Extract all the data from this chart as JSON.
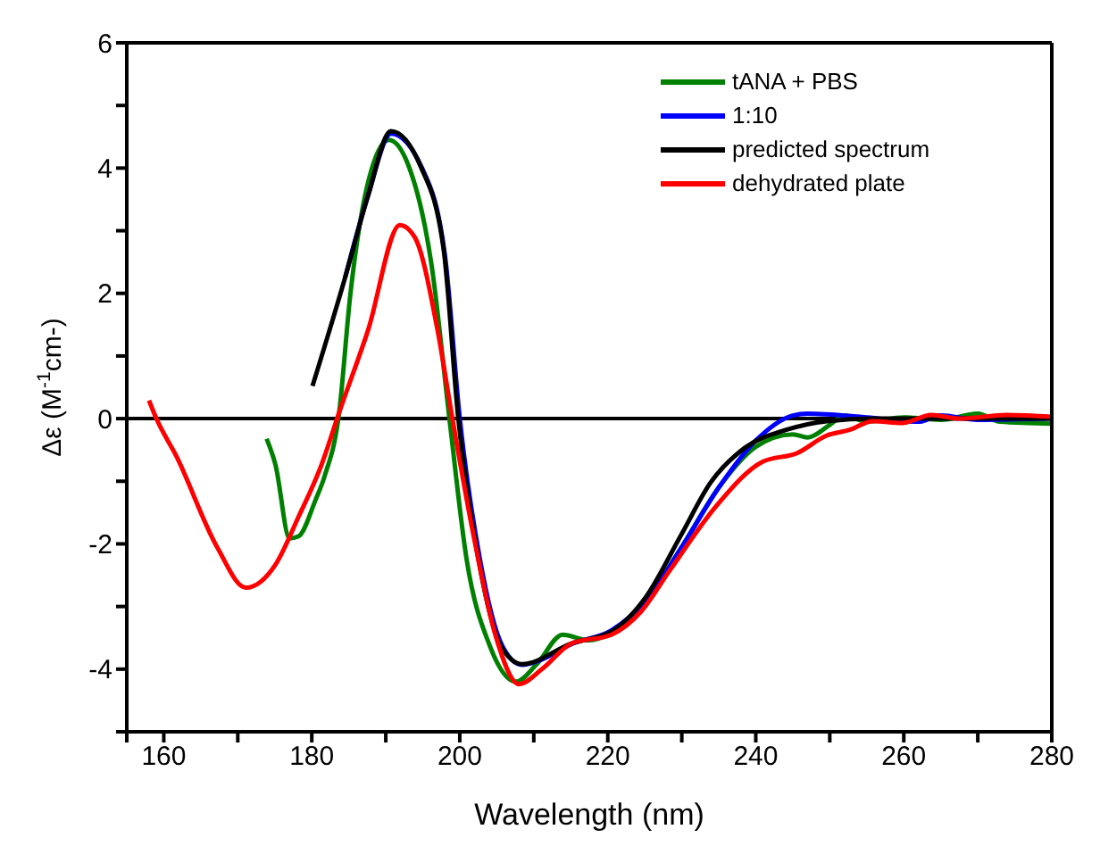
{
  "chart_data": {
    "type": "line",
    "xlabel": "Wavelength (nm)",
    "ylabel": "Δε (M$^{-1}$cm-)",
    "xlim": [
      155,
      280
    ],
    "xticks": [
      {
        "value": 155,
        "label": null
      },
      160,
      {
        "value": 170,
        "label": null
      },
      180,
      {
        "value": 190,
        "label": null
      },
      200,
      {
        "value": 210,
        "label": null
      },
      220,
      {
        "value": 230,
        "label": null
      },
      240,
      {
        "value": 250,
        "label": null
      },
      260,
      {
        "value": 270,
        "label": null
      },
      280
    ],
    "ylim": [
      -5,
      6
    ],
    "yticks": [
      {
        "value": -5,
        "label": null
      },
      -4,
      {
        "value": -3,
        "label": null
      },
      -2,
      {
        "value": -1,
        "label": null
      },
      0,
      {
        "value": 1,
        "label": null
      },
      2,
      {
        "value": 3,
        "label": null
      },
      4,
      {
        "value": 5,
        "label": null
      },
      6
    ],
    "legend": "top right",
    "line_style": "solid",
    "ref_lines": [
      {
        "axis": "y",
        "value": 0,
        "label": null,
        "color": "#000000"
      }
    ],
    "series": [
      {
        "name": "tANA + PBS",
        "color": "#008000",
        "x": [
          173.9,
          175.1,
          177,
          178.2,
          180.5,
          181.7,
          183.7,
          185.2,
          187.2,
          190.4,
          193.1,
          196.2,
          198.6,
          200.9,
          204.1,
          207.6,
          210.4,
          213.9,
          217.4,
          220.5,
          225,
          230,
          235,
          240,
          245,
          247,
          250,
          252,
          255,
          260,
          265,
          270,
          273,
          280
        ],
        "values": [
          -0.32,
          -0.74,
          -1.91,
          -1.88,
          -1.3,
          -0.93,
          0.1,
          1.97,
          3.56,
          4.45,
          4.03,
          2.44,
          0,
          -2.23,
          -3.64,
          -4.2,
          -3.92,
          -3.45,
          -3.54,
          -3.42,
          -2.95,
          -2.05,
          -1.1,
          -0.45,
          -0.25,
          -0.3,
          -0.1,
          0.05,
          -0.05,
          0.02,
          -0.02,
          0.08,
          -0.05,
          -0.08
        ]
      },
      {
        "name": "1:10",
        "color": "#0000ff",
        "x": [
          184.5,
          187.6,
          190.7,
          194.9,
          198,
          200,
          202.7,
          205.8,
          208.4,
          211,
          215.1,
          220.5,
          225.2,
          230,
          235,
          240,
          245,
          247,
          255,
          262,
          265,
          270,
          280
        ],
        "values": [
          2.25,
          3.56,
          4.55,
          4.0,
          2.6,
          0,
          -2.23,
          -3.64,
          -3.93,
          -3.85,
          -3.6,
          -3.38,
          -2.9,
          -2.05,
          -1.1,
          -0.35,
          0.05,
          0.08,
          0.02,
          -0.05,
          0.05,
          -0.02,
          0
        ]
      },
      {
        "name": "predicted spectrum",
        "color": "#000000",
        "x": [
          180.1,
          184.5,
          187.6,
          190.7,
          194.7,
          197.8,
          199.8,
          202.5,
          205.6,
          208.4,
          215.1,
          220.5,
          225.2,
          229.9,
          233.9,
          238.6,
          244.1,
          249.6,
          255.8,
          280
        ],
        "values": [
          0.52,
          2.25,
          3.56,
          4.59,
          4.03,
          2.72,
          0,
          -2.23,
          -3.64,
          -3.92,
          -3.59,
          -3.4,
          -2.84,
          -1.86,
          -1.02,
          -0.46,
          -0.18,
          -0.04,
          0,
          0
        ]
      },
      {
        "name": "dehydrated plate",
        "color": "#ff0000",
        "x": [
          158,
          159,
          161.7,
          167.2,
          171.1,
          175.1,
          178.2,
          181.3,
          183.7,
          187.6,
          191.9,
          193.9,
          197,
          199,
          201.7,
          204.8,
          208,
          211.1,
          215.1,
          220.5,
          224.5,
          228.4,
          234.7,
          240.9,
          245.6,
          249.6,
          252.7,
          255.8,
          259.8,
          263.7,
          267.6,
          273.9,
          280
        ],
        "values": [
          0.29,
          0,
          -0.6,
          -2.05,
          -2.7,
          -2.33,
          -1.57,
          -0.74,
          0.1,
          1.41,
          3.09,
          2.9,
          1.41,
          0,
          -1.77,
          -3.45,
          -4.24,
          -4.0,
          -3.59,
          -3.45,
          -3.08,
          -2.42,
          -1.39,
          -0.69,
          -0.55,
          -0.27,
          -0.18,
          -0.04,
          -0.07,
          0.06,
          0,
          0.06,
          0.03
        ]
      }
    ]
  }
}
